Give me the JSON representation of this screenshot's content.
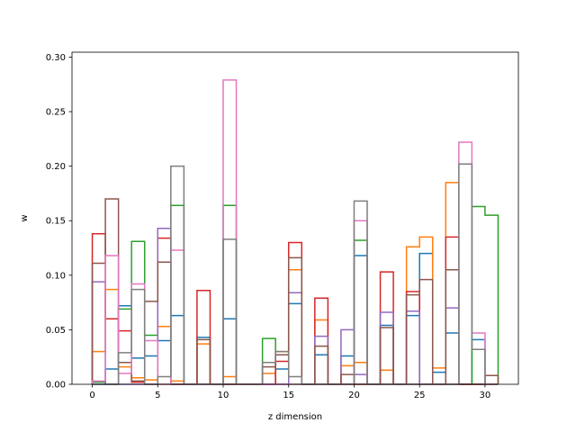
{
  "chart_data": {
    "type": "histogram-step",
    "title": "",
    "xlabel": "z dimension",
    "ylabel": "w",
    "xlim": [
      -1.55,
      32.55
    ],
    "ylim": [
      0.0,
      0.3045
    ],
    "xticks": [
      0,
      5,
      10,
      15,
      20,
      25,
      30
    ],
    "xtick_labels": [
      "0",
      "5",
      "10",
      "15",
      "20",
      "25",
      "30"
    ],
    "yticks": [
      0.0,
      0.05,
      0.1,
      0.15,
      0.2,
      0.25,
      0.3
    ],
    "ytick_labels": [
      "0.00",
      "0.05",
      "0.10",
      "0.15",
      "0.20",
      "0.25",
      "0.30"
    ],
    "bin_edges": [
      0,
      1,
      2,
      3,
      4,
      5,
      6,
      7,
      8,
      9,
      10,
      11,
      12,
      13,
      14,
      15,
      16,
      17,
      18,
      19,
      20,
      21,
      22,
      23,
      24,
      25,
      26,
      27,
      28,
      29,
      30,
      31
    ],
    "series": [
      {
        "color": "#1f77b4",
        "values": [
          0.0,
          0.014,
          0.072,
          0.024,
          0.026,
          0.04,
          0.063,
          0.0,
          0.043,
          0.0,
          0.06,
          0.0,
          0.0,
          0.0,
          0.014,
          0.074,
          0.0,
          0.027,
          0.0,
          0.026,
          0.118,
          0.0,
          0.054,
          0.0,
          0.063,
          0.12,
          0.011,
          0.047,
          0.0,
          0.041,
          0.0
        ]
      },
      {
        "color": "#ff7f0e",
        "values": [
          0.03,
          0.087,
          0.016,
          0.006,
          0.004,
          0.053,
          0.003,
          0.0,
          0.037,
          0.0,
          0.007,
          0.0,
          0.0,
          0.01,
          0.03,
          0.105,
          0.0,
          0.059,
          0.0,
          0.017,
          0.02,
          0.0,
          0.013,
          0.0,
          0.126,
          0.135,
          0.015,
          0.185,
          0.0,
          0.0,
          0.0
        ]
      },
      {
        "color": "#2ca02c",
        "values": [
          0.002,
          0.0,
          0.069,
          0.131,
          0.045,
          0.0,
          0.164,
          0.0,
          0.0,
          0.0,
          0.164,
          0.0,
          0.0,
          0.042,
          0.0,
          0.0,
          0.0,
          0.0,
          0.0,
          0.0,
          0.132,
          0.0,
          0.0,
          0.0,
          0.0,
          0.0,
          0.0,
          0.0,
          0.0,
          0.163,
          0.155
        ]
      },
      {
        "color": "#d62728",
        "values": [
          0.138,
          0.06,
          0.049,
          0.002,
          0.0,
          0.134,
          0.0,
          0.0,
          0.086,
          0.0,
          0.0,
          0.0,
          0.0,
          0.0,
          0.021,
          0.13,
          0.0,
          0.079,
          0.0,
          0.0,
          0.0,
          0.0,
          0.103,
          0.0,
          0.085,
          0.0,
          0.0,
          0.135,
          0.0,
          0.0,
          0.0
        ]
      },
      {
        "color": "#9467bd",
        "values": [
          0.094,
          0.0,
          0.0,
          0.0,
          0.0,
          0.143,
          0.0,
          0.0,
          0.0,
          0.0,
          0.0,
          0.0,
          0.0,
          0.0,
          0.0,
          0.084,
          0.0,
          0.044,
          0.0,
          0.05,
          0.009,
          0.0,
          0.066,
          0.0,
          0.067,
          0.0,
          0.0,
          0.07,
          0.0,
          0.0,
          0.0
        ]
      },
      {
        "color": "#8c564b",
        "values": [
          0.111,
          0.17,
          0.02,
          0.003,
          0.076,
          0.112,
          0.0,
          0.0,
          0.041,
          0.0,
          0.0,
          0.0,
          0.0,
          0.016,
          0.027,
          0.116,
          0.0,
          0.035,
          0.0,
          0.009,
          0.0,
          0.0,
          0.052,
          0.0,
          0.082,
          0.096,
          0.0,
          0.105,
          0.0,
          0.0,
          0.008
        ]
      },
      {
        "color": "#e377c2",
        "values": [
          0.003,
          0.118,
          0.01,
          0.092,
          0.04,
          0.0,
          0.123,
          0.0,
          0.0,
          0.0,
          0.279,
          0.0,
          0.0,
          0.0,
          0.0,
          0.0,
          0.0,
          0.0,
          0.0,
          0.0,
          0.15,
          0.0,
          0.0,
          0.0,
          0.0,
          0.0,
          0.0,
          0.0,
          0.222,
          0.047,
          0.0
        ]
      },
      {
        "color": "#7f7f7f",
        "values": [
          0.0,
          0.0,
          0.029,
          0.087,
          0.0,
          0.007,
          0.2,
          0.0,
          0.0,
          0.0,
          0.133,
          0.0,
          0.0,
          0.02,
          0.03,
          0.007,
          0.0,
          0.0,
          0.0,
          0.0,
          0.168,
          0.0,
          0.0,
          0.0,
          0.0,
          0.0,
          0.0,
          0.0,
          0.202,
          0.032,
          0.0
        ]
      }
    ]
  }
}
